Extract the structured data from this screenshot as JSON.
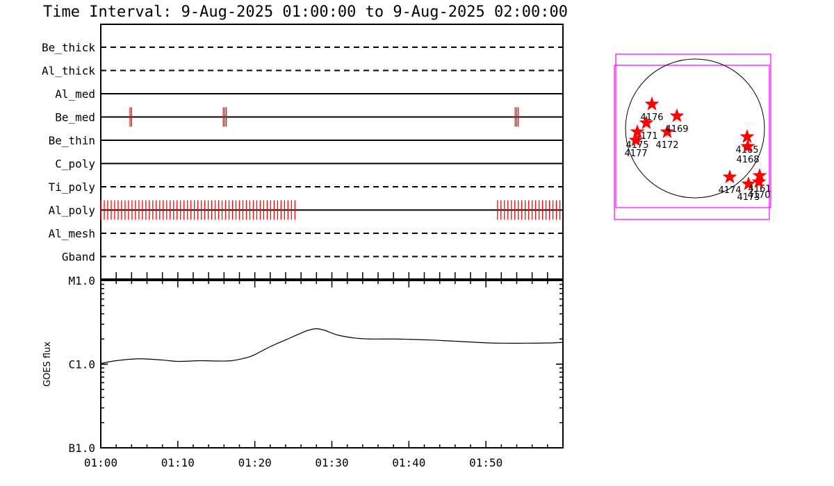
{
  "title": "Time Interval:  9-Aug-2025 01:00:00 to  9-Aug-2025 02:00:00",
  "chart_data": [
    {
      "type": "timeline",
      "x_range_minutes": [
        0,
        60
      ],
      "x_start": "01:00",
      "x_end": "02:00",
      "filters": [
        {
          "name": "Be_thick",
          "style": "dashed"
        },
        {
          "name": "Al_thick",
          "style": "dashed"
        },
        {
          "name": "Al_med",
          "style": "solid"
        },
        {
          "name": "Be_med",
          "style": "solid"
        },
        {
          "name": "Be_thin",
          "style": "solid"
        },
        {
          "name": "C_poly",
          "style": "solid"
        },
        {
          "name": "Ti_poly",
          "style": "dashed"
        },
        {
          "name": "Al_poly",
          "style": "solid"
        },
        {
          "name": "Al_mesh",
          "style": "dashed"
        },
        {
          "name": "Gband",
          "style": "dashed"
        }
      ],
      "observations": [
        {
          "filter": "Be_med",
          "minutes": [
            3.8,
            4.0,
            15.9,
            16.1,
            16.3,
            53.8,
            54.0,
            54.2
          ]
        },
        {
          "filter": "Al_poly",
          "ranges": [
            [
              0.0,
              25.5
            ],
            [
              51.5,
              59.6
            ]
          ],
          "spacing_minutes": 0.45
        }
      ],
      "obs_color": "#ff0000"
    },
    {
      "type": "line",
      "ylabel": "GOES flux",
      "yscale": "log",
      "ylim": [
        1e-07,
        1e-05
      ],
      "ytick_labels": [
        "B1.0",
        "C1.0",
        "M1.0"
      ],
      "xlabel": "",
      "xtick_labels": [
        "01:00",
        "01:10",
        "01:20",
        "01:30",
        "01:40",
        "01:50"
      ],
      "xtick_minutes": [
        0,
        10,
        20,
        30,
        40,
        50
      ],
      "x": [
        0,
        2,
        5,
        8,
        10,
        13,
        15,
        17,
        19,
        20,
        22,
        24,
        26,
        27,
        28,
        29,
        30,
        31,
        33,
        35,
        38,
        40,
        43,
        45,
        48,
        50,
        52,
        55,
        58,
        60
      ],
      "y": [
        1.02e-06,
        1.1e-06,
        1.16e-06,
        1.12e-06,
        1.08e-06,
        1.1e-06,
        1.09e-06,
        1.1e-06,
        1.2e-06,
        1.3e-06,
        1.62e-06,
        1.95e-06,
        2.35e-06,
        2.55e-06,
        2.65e-06,
        2.55e-06,
        2.35e-06,
        2.2e-06,
        2.05e-06,
        2e-06,
        2e-06,
        1.98e-06,
        1.94e-06,
        1.9e-06,
        1.84e-06,
        1.8e-06,
        1.78e-06,
        1.78e-06,
        1.79e-06,
        1.82e-06
      ]
    },
    {
      "type": "scatter",
      "description_units": "solar disk, radius = 1",
      "marker": "star",
      "marker_color": "#ff0000",
      "fov_color": "#ff00ff",
      "points": [
        {
          "x": -0.62,
          "y": 0.35,
          "label": "4176"
        },
        {
          "x": -0.7,
          "y": 0.08,
          "label": "4171"
        },
        {
          "x": -0.83,
          "y": -0.05,
          "label": "4175"
        },
        {
          "x": -0.85,
          "y": -0.17,
          "label": "4177"
        },
        {
          "x": -0.4,
          "y": -0.05,
          "label": "4172"
        },
        {
          "x": -0.26,
          "y": 0.18,
          "label": "4169"
        },
        {
          "x": 0.75,
          "y": -0.12,
          "label": "4165"
        },
        {
          "x": 0.76,
          "y": -0.26,
          "label": "4168"
        },
        {
          "x": 0.5,
          "y": -0.7,
          "label": "4174"
        },
        {
          "x": 0.77,
          "y": -0.8,
          "label": "4173"
        },
        {
          "x": 0.93,
          "y": -0.68,
          "label": "4161"
        },
        {
          "x": 0.92,
          "y": -0.77,
          "label": "4170"
        }
      ]
    }
  ]
}
